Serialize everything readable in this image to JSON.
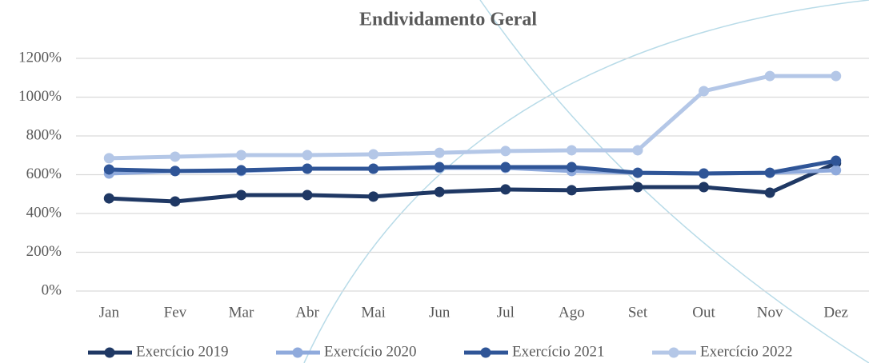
{
  "chart_data": {
    "type": "line",
    "title": "Endividamento Geral",
    "categories": [
      "Jan",
      "Fev",
      "Mar",
      "Abr",
      "Mai",
      "Jun",
      "Jul",
      "Ago",
      "Set",
      "Out",
      "Nov",
      "Dez"
    ],
    "series": [
      {
        "name": "Exercício 2019",
        "color": "#1f3864",
        "values": [
          478,
          462,
          495,
          495,
          487,
          511,
          524,
          520,
          536,
          536,
          507,
          660
        ]
      },
      {
        "name": "Exercício 2020",
        "color": "#8faadc",
        "values": [
          606,
          619,
          619,
          631,
          631,
          635,
          635,
          619,
          610,
          606,
          610,
          623
        ]
      },
      {
        "name": "Exercício 2021",
        "color": "#2f5597",
        "values": [
          627,
          619,
          623,
          631,
          631,
          639,
          639,
          639,
          610,
          606,
          610,
          672
        ]
      },
      {
        "name": "Exercício 2022",
        "color": "#b4c7e7",
        "values": [
          685,
          693,
          701,
          701,
          705,
          713,
          722,
          726,
          726,
          1031,
          1109,
          1109
        ]
      }
    ],
    "ylim": [
      0,
      1200
    ],
    "yticks": [
      {
        "value": 0,
        "label": "0%"
      },
      {
        "value": 200,
        "label": "200%"
      },
      {
        "value": 400,
        "label": "400%"
      },
      {
        "value": 600,
        "label": "600%"
      },
      {
        "value": 800,
        "label": "800%"
      },
      {
        "value": 1000,
        "label": "1000%"
      },
      {
        "value": 1200,
        "label": "1200%"
      }
    ],
    "grid": true,
    "legend": "bottom"
  }
}
